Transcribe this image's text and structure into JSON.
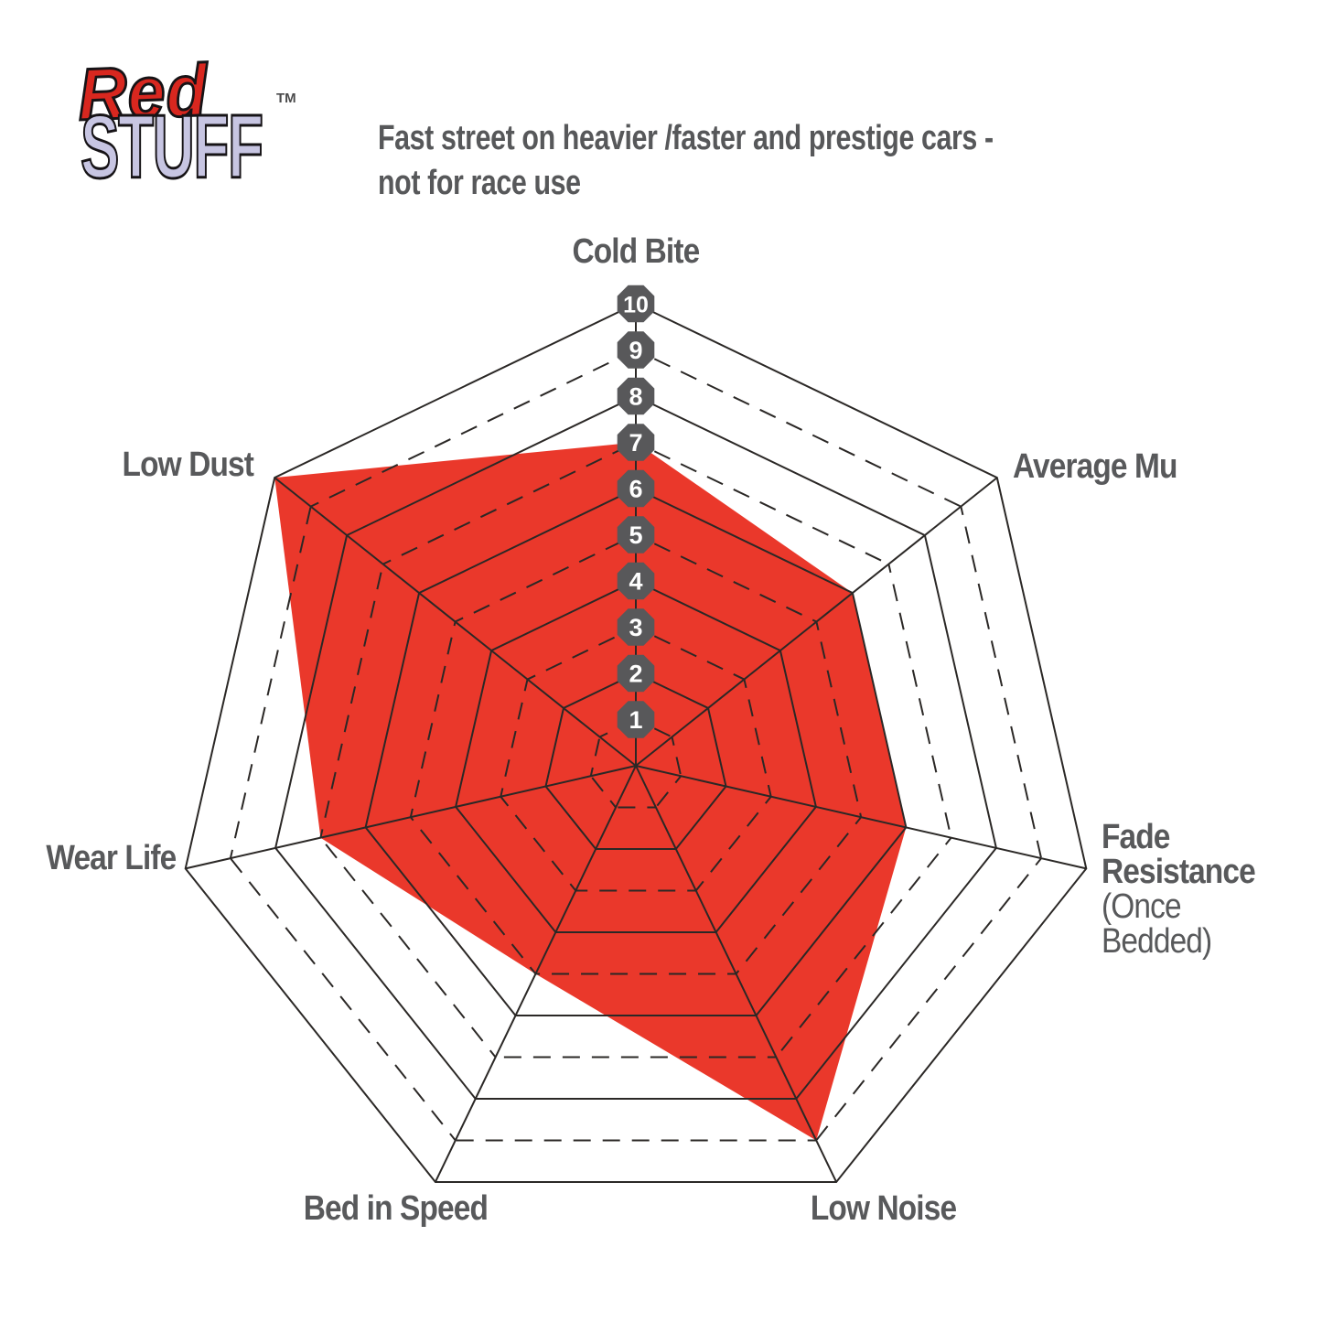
{
  "logo": {
    "line1": "Red",
    "line2": "STUFF",
    "trademark": "TM",
    "line1_color": "#d8271f",
    "line2_color": "#c7c5e2"
  },
  "header": {
    "line1": "Fast street on heavier /faster and prestige cars -",
    "line2": "not for race use"
  },
  "chart_data": {
    "type": "radar",
    "categories": [
      "Cold Bite",
      "Average Mu",
      "Fade Resistance",
      "Low Noise",
      "Bed in Speed",
      "Wear Life",
      "Low Dust"
    ],
    "category_sublabels": [
      "",
      "",
      "(Once Bedded)",
      "",
      "",
      "",
      ""
    ],
    "values": [
      7,
      6,
      6,
      9,
      5,
      7,
      10
    ],
    "axis_range": [
      0,
      10
    ],
    "scale_ticks": [
      "1",
      "2",
      "3",
      "4",
      "5",
      "6",
      "7",
      "8",
      "9",
      "10"
    ],
    "grid": {
      "rings": 10,
      "even_rings": "solid",
      "odd_rings": "dashed",
      "spokes": 7
    },
    "colors": {
      "fill": "#ea382b",
      "grid_line": "#2b2826",
      "badge_fill": "#58585a",
      "badge_text": "#ffffff",
      "label_text": "#58595b"
    }
  }
}
